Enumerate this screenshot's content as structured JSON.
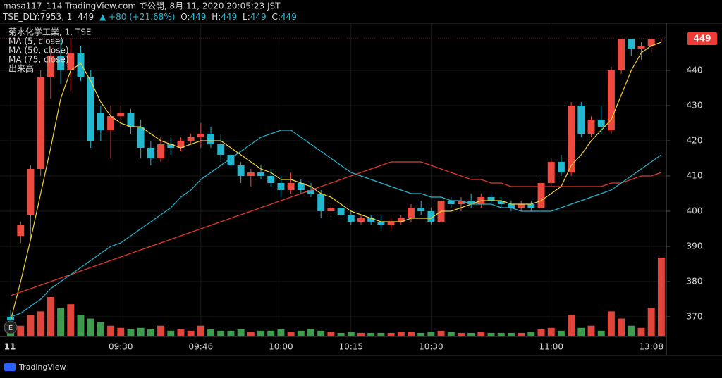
{
  "header": {
    "published": "masa117_114 TradingView.com で公開, 8月 11, 2020 20:05:23 JST",
    "symbol": "TSE_DLY:7953, 1",
    "last": "449",
    "change": "▲ +80 (+21.68%)",
    "ohlc": [
      {
        "label": "O:",
        "value": "449"
      },
      {
        "label": "H:",
        "value": "449"
      },
      {
        "label": "L:",
        "value": "449"
      },
      {
        "label": "C:",
        "value": "449"
      }
    ]
  },
  "footer": {
    "brand": "TradingView",
    "marker": "E"
  },
  "chart_data": {
    "type": "candlestick",
    "last_price": 449,
    "categories": [
      "11",
      null,
      null,
      null,
      null,
      null,
      null,
      null,
      null,
      null,
      null,
      "09:30",
      null,
      null,
      null,
      null,
      null,
      null,
      null,
      "09:46",
      null,
      null,
      null,
      null,
      null,
      null,
      null,
      "10:00",
      null,
      null,
      null,
      null,
      null,
      null,
      "10:15",
      null,
      null,
      null,
      null,
      null,
      null,
      null,
      "10:30",
      null,
      null,
      null,
      null,
      null,
      null,
      null,
      null,
      null,
      null,
      null,
      "11:00",
      null,
      null,
      null,
      null,
      null,
      null,
      null,
      null,
      null,
      "13:08",
      null
    ],
    "ylim": [
      364.4,
      452
    ],
    "yticks": [
      370,
      380,
      390,
      400,
      410,
      420,
      430,
      440
    ],
    "grid": true,
    "candles": {
      "name": "菊水化学工業, 1, TSE",
      "up_color": "#ef4a3f",
      "down_color": "#22b8d0",
      "open": [
        370,
        393,
        399,
        412,
        438,
        444,
        440,
        445,
        438,
        428,
        423,
        427,
        428,
        424,
        418,
        415,
        419,
        418,
        420,
        421,
        422,
        419,
        416,
        413,
        410,
        411,
        410,
        408,
        406,
        408,
        406,
        405,
        400,
        401,
        399,
        397,
        398,
        397,
        396,
        397,
        398,
        401,
        400,
        397,
        403,
        402,
        403,
        402,
        404,
        403,
        402,
        401,
        402,
        401,
        408,
        414,
        411,
        430,
        422,
        426,
        423,
        440,
        449,
        446,
        447,
        449
      ],
      "high": [
        372,
        397,
        413,
        440,
        447,
        449,
        449,
        447,
        440,
        430,
        430,
        430,
        429,
        426,
        420,
        421,
        421,
        421,
        422,
        425,
        424,
        422,
        418,
        414,
        412,
        413,
        412,
        410,
        411,
        409,
        408,
        406,
        402,
        402,
        400,
        399,
        399,
        399,
        398,
        399,
        402,
        403,
        401,
        404,
        404,
        404,
        405,
        405,
        405,
        404,
        403,
        403,
        403,
        409,
        415,
        416,
        431,
        431,
        427,
        430,
        441,
        449,
        449,
        448,
        449,
        449
      ],
      "low": [
        366,
        391,
        392,
        410,
        432,
        436,
        434,
        437,
        418,
        420,
        415,
        424,
        422,
        415,
        413,
        414,
        416,
        417,
        419,
        418,
        418,
        414,
        412,
        408,
        407,
        409,
        407,
        404,
        405,
        405,
        404,
        398,
        399,
        398,
        396,
        396,
        396,
        395,
        395,
        396,
        397,
        399,
        396,
        396,
        401,
        400,
        401,
        401,
        402,
        401,
        400,
        400,
        400,
        400,
        407,
        410,
        410,
        421,
        421,
        422,
        422,
        439,
        444,
        443,
        445,
        448
      ],
      "close": [
        369,
        396,
        412,
        438,
        444,
        440,
        445,
        438,
        420,
        423,
        427,
        428,
        424,
        418,
        415,
        419,
        418,
        420,
        421,
        422,
        419,
        416,
        413,
        410,
        411,
        410,
        408,
        406,
        408,
        406,
        405,
        400,
        401,
        399,
        397,
        398,
        397,
        396,
        397,
        398,
        401,
        400,
        397,
        403,
        402,
        403,
        402,
        404,
        403,
        402,
        401,
        402,
        401,
        408,
        414,
        411,
        430,
        422,
        426,
        424,
        440,
        449,
        446,
        447,
        449,
        449
      ]
    },
    "volume": {
      "name": "出来高",
      "up_color": "#e0453c",
      "down_color": "#3f9c4f",
      "values": [
        10,
        15,
        30,
        35,
        55,
        40,
        45,
        30,
        25,
        20,
        15,
        12,
        10,
        12,
        10,
        15,
        8,
        10,
        8,
        15,
        10,
        8,
        8,
        10,
        6,
        8,
        8,
        10,
        6,
        8,
        10,
        8,
        6,
        5,
        6,
        5,
        5,
        5,
        5,
        6,
        6,
        5,
        6,
        8,
        6,
        5,
        5,
        6,
        5,
        5,
        5,
        5,
        6,
        10,
        12,
        8,
        30,
        12,
        15,
        8,
        35,
        25,
        15,
        12,
        40,
        110
      ]
    },
    "series": [
      {
        "name": "MA (5, close)",
        "color": "#f3d23a",
        "values": [
          369,
          380,
          392,
          405,
          418,
          432,
          440,
          442,
          437,
          431,
          427,
          425,
          424,
          424,
          422,
          420,
          419,
          418,
          419,
          420,
          420,
          420,
          418,
          416,
          414,
          412,
          411,
          409,
          409,
          408,
          407,
          405,
          404,
          402,
          400,
          399,
          398,
          397,
          397,
          397,
          398,
          398,
          398,
          400,
          400,
          401,
          402,
          403,
          403,
          403,
          402,
          402,
          402,
          403,
          405,
          407,
          413,
          416,
          420,
          423,
          426,
          433,
          440,
          445,
          447,
          448
        ]
      },
      {
        "name": "MA (50, close)",
        "color": "#e0382f",
        "values": [
          376,
          377,
          378,
          379,
          380,
          381,
          382,
          383,
          384,
          385,
          386,
          387,
          388,
          389,
          390,
          391,
          392,
          393,
          394,
          395,
          396,
          397,
          398,
          399,
          400,
          401,
          402,
          403,
          404,
          405,
          406,
          407,
          408,
          409,
          410,
          411,
          412,
          413,
          414,
          414,
          414,
          414,
          413,
          412,
          411,
          410,
          409,
          409,
          408,
          408,
          407,
          407,
          407,
          407,
          407,
          407,
          407,
          407,
          407,
          407,
          408,
          408,
          409,
          410,
          410,
          411
        ]
      },
      {
        "name": "MA (75, close)",
        "color": "#25b4d0",
        "values": [
          370,
          371,
          373,
          375,
          378,
          380,
          382,
          384,
          386,
          388,
          390,
          391,
          393,
          395,
          397,
          399,
          401,
          404,
          406,
          409,
          411,
          413,
          415,
          417,
          419,
          421,
          422,
          423,
          423,
          421,
          419,
          417,
          415,
          413,
          411,
          410,
          409,
          408,
          407,
          406,
          405,
          405,
          404,
          404,
          403,
          403,
          402,
          402,
          402,
          401,
          401,
          400,
          400,
          400,
          400,
          401,
          402,
          403,
          404,
          405,
          406,
          408,
          410,
          412,
          414,
          416
        ]
      }
    ]
  }
}
